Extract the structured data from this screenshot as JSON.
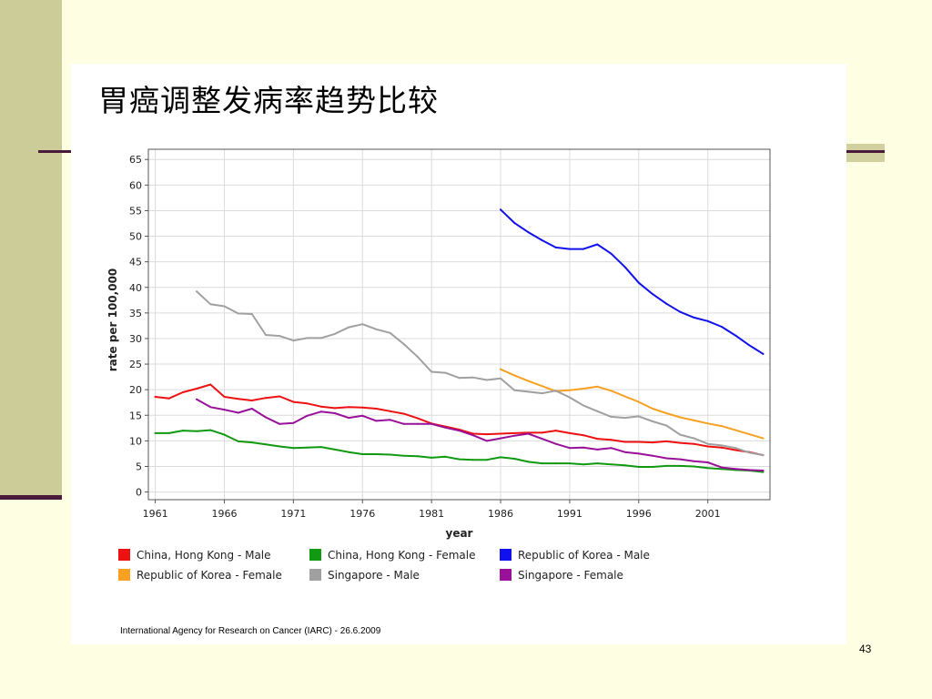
{
  "slide": {
    "title": "胃癌调整发病率趋势比较",
    "source_note": "International Agency for Research on Cancer (IARC) - 26.6.2009",
    "page_number": "43"
  },
  "chart_data": {
    "type": "line",
    "xlabel": "year",
    "ylabel": "rate per 100,000",
    "xlim": [
      1960.5,
      2005.5
    ],
    "ylim": [
      -1.5,
      67
    ],
    "xticks": [
      1961,
      1966,
      1971,
      1976,
      1981,
      1986,
      1991,
      1996,
      2001
    ],
    "yticks": [
      0,
      5,
      10,
      15,
      20,
      25,
      30,
      35,
      40,
      45,
      50,
      55,
      60,
      65
    ],
    "grid": true,
    "legend_position": "bottom",
    "series": [
      {
        "name": "China, Hong Kong - Male",
        "color": "#ee1111",
        "x": [
          1961,
          1962,
          1963,
          1964,
          1965,
          1966,
          1967,
          1968,
          1969,
          1970,
          1971,
          1972,
          1973,
          1974,
          1975,
          1976,
          1977,
          1978,
          1979,
          1980,
          1981,
          1982,
          1983,
          1984,
          1985,
          1986,
          1987,
          1988,
          1989,
          1990,
          1991,
          1992,
          1993,
          1994,
          1995,
          1996,
          1997,
          1998,
          1999,
          2000,
          2001,
          2002,
          2003,
          2004,
          2005
        ],
        "y": [
          18.6,
          18.3,
          19.5,
          20.2,
          21.0,
          18.6,
          18.2,
          17.9,
          18.4,
          18.7,
          17.6,
          17.3,
          16.7,
          16.4,
          16.6,
          16.5,
          16.3,
          15.8,
          15.3,
          14.4,
          13.4,
          12.8,
          12.2,
          11.4,
          11.3,
          11.4,
          11.5,
          11.6,
          11.6,
          12.0,
          11.5,
          11.1,
          10.4,
          10.2,
          9.8,
          9.8,
          9.7,
          9.9,
          9.6,
          9.4,
          8.9,
          8.7,
          8.2,
          7.8,
          7.2
        ]
      },
      {
        "name": "China, Hong Kong - Female",
        "color": "#119911",
        "x": [
          1961,
          1962,
          1963,
          1964,
          1965,
          1966,
          1967,
          1968,
          1969,
          1970,
          1971,
          1972,
          1973,
          1974,
          1975,
          1976,
          1977,
          1978,
          1979,
          1980,
          1981,
          1982,
          1983,
          1984,
          1985,
          1986,
          1987,
          1988,
          1989,
          1990,
          1991,
          1992,
          1993,
          1994,
          1995,
          1996,
          1997,
          1998,
          1999,
          2000,
          2001,
          2002,
          2003,
          2004,
          2005
        ],
        "y": [
          11.5,
          11.5,
          12.0,
          11.9,
          12.1,
          11.2,
          9.9,
          9.7,
          9.3,
          8.9,
          8.6,
          8.7,
          8.8,
          8.3,
          7.8,
          7.4,
          7.4,
          7.3,
          7.1,
          7.0,
          6.7,
          6.9,
          6.4,
          6.3,
          6.3,
          6.8,
          6.5,
          5.9,
          5.6,
          5.6,
          5.6,
          5.4,
          5.6,
          5.4,
          5.2,
          4.9,
          4.9,
          5.1,
          5.1,
          5.0,
          4.7,
          4.5,
          4.3,
          4.2,
          3.9
        ]
      },
      {
        "name": "Republic of Korea - Male",
        "color": "#1111ee",
        "x": [
          1986,
          1987,
          1988,
          1989,
          1990,
          1991,
          1992,
          1993,
          1994,
          1995,
          1996,
          1997,
          1998,
          1999,
          2000,
          2001,
          2002,
          2003,
          2004,
          2005
        ],
        "y": [
          55.2,
          52.6,
          50.8,
          49.2,
          47.8,
          47.5,
          47.5,
          48.4,
          46.6,
          44.0,
          40.9,
          38.7,
          36.8,
          35.2,
          34.1,
          33.4,
          32.3,
          30.6,
          28.7,
          27.0
        ]
      },
      {
        "name": "Republic of Korea - Female",
        "color": "#f7a021",
        "x": [
          1986,
          1987,
          1988,
          1989,
          1990,
          1991,
          1992,
          1993,
          1994,
          1995,
          1996,
          1997,
          1998,
          1999,
          2000,
          2001,
          2002,
          2003,
          2004,
          2005
        ],
        "y": [
          24.0,
          22.8,
          21.7,
          20.7,
          19.7,
          19.9,
          20.2,
          20.6,
          19.8,
          18.7,
          17.6,
          16.3,
          15.4,
          14.6,
          14.0,
          13.4,
          12.9,
          12.1,
          11.3,
          10.5
        ]
      },
      {
        "name": "Singapore - Male",
        "color": "#a0a0a0",
        "x": [
          1964,
          1965,
          1966,
          1967,
          1968,
          1969,
          1970,
          1971,
          1972,
          1973,
          1974,
          1975,
          1976,
          1977,
          1978,
          1979,
          1980,
          1981,
          1982,
          1983,
          1984,
          1985,
          1986,
          1987,
          1988,
          1989,
          1990,
          1991,
          1992,
          1993,
          1994,
          1995,
          1996,
          1997,
          1998,
          1999,
          2000,
          2001,
          2002,
          2003,
          2004,
          2005
        ],
        "y": [
          39.2,
          36.7,
          36.3,
          34.9,
          34.8,
          30.7,
          30.5,
          29.6,
          30.1,
          30.1,
          30.9,
          32.2,
          32.8,
          31.8,
          31.1,
          28.9,
          26.4,
          23.5,
          23.3,
          22.3,
          22.4,
          21.9,
          22.2,
          19.9,
          19.6,
          19.3,
          19.8,
          18.5,
          16.9,
          15.8,
          14.7,
          14.5,
          14.8,
          13.8,
          13.0,
          11.2,
          10.5,
          9.4,
          9.1,
          8.6,
          7.7,
          7.2
        ]
      },
      {
        "name": "Singapore - Female",
        "color": "#991199",
        "x": [
          1964,
          1965,
          1966,
          1967,
          1968,
          1969,
          1970,
          1971,
          1972,
          1973,
          1974,
          1975,
          1976,
          1977,
          1978,
          1979,
          1980,
          1981,
          1982,
          1983,
          1984,
          1985,
          1986,
          1987,
          1988,
          1989,
          1990,
          1991,
          1992,
          1993,
          1994,
          1995,
          1996,
          1997,
          1998,
          1999,
          2000,
          2001,
          2002,
          2003,
          2004,
          2005
        ],
        "y": [
          18.1,
          16.6,
          16.1,
          15.5,
          16.3,
          14.6,
          13.3,
          13.5,
          14.9,
          15.7,
          15.4,
          14.5,
          14.9,
          13.9,
          14.1,
          13.3,
          13.3,
          13.3,
          12.6,
          12.0,
          11.1,
          10.0,
          10.5,
          11.0,
          11.4,
          10.4,
          9.4,
          8.6,
          8.7,
          8.3,
          8.6,
          7.8,
          7.5,
          7.1,
          6.6,
          6.4,
          6.0,
          5.8,
          4.8,
          4.5,
          4.3,
          4.2
        ]
      }
    ]
  }
}
